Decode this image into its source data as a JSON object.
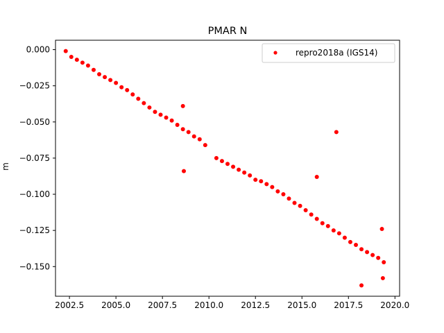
{
  "chart_data": {
    "type": "scatter",
    "title": "PMAR N",
    "xlabel": "",
    "ylabel": "m",
    "xlim": [
      2001.75,
      2020.25
    ],
    "ylim": [
      -0.1705,
      0.0065
    ],
    "xticks": [
      2002.5,
      2005.0,
      2007.5,
      2010.0,
      2012.5,
      2015.0,
      2017.5,
      2020.0
    ],
    "xtick_labels": [
      "2002.5",
      "2005.0",
      "2007.5",
      "2010.0",
      "2012.5",
      "2015.0",
      "2017.5",
      "2020.0"
    ],
    "yticks": [
      0.0,
      -0.025,
      -0.05,
      -0.075,
      -0.1,
      -0.125,
      -0.15
    ],
    "ytick_labels": [
      "0.000",
      "−0.025",
      "−0.050",
      "−0.075",
      "−0.100",
      "−0.125",
      "−0.150"
    ],
    "grid": false,
    "legend_position": "top-right",
    "series": [
      {
        "name": "repro2018a (IGS14)",
        "color": "#ff0000",
        "marker": "point",
        "x": [
          2002.3,
          2002.6,
          2002.9,
          2003.2,
          2003.5,
          2003.8,
          2004.1,
          2004.4,
          2004.7,
          2005.0,
          2005.3,
          2005.6,
          2005.9,
          2006.2,
          2006.5,
          2006.8,
          2007.1,
          2007.4,
          2007.7,
          2008.0,
          2008.3,
          2008.6,
          2008.9,
          2009.2,
          2009.5,
          2009.8,
          2010.4,
          2010.7,
          2011.0,
          2011.3,
          2011.6,
          2011.9,
          2012.2,
          2012.5,
          2012.8,
          2013.1,
          2013.4,
          2013.7,
          2014.0,
          2014.3,
          2014.6,
          2014.9,
          2015.2,
          2015.5,
          2015.8,
          2016.1,
          2016.4,
          2016.7,
          2017.0,
          2017.3,
          2017.6,
          2017.9,
          2018.2,
          2018.5,
          2018.8,
          2019.1,
          2019.4,
          2008.65,
          2015.8,
          2016.85,
          2018.2,
          2019.3,
          2019.35,
          2008.6
        ],
        "y": [
          -0.001,
          -0.005,
          -0.007,
          -0.009,
          -0.011,
          -0.014,
          -0.017,
          -0.019,
          -0.021,
          -0.023,
          -0.026,
          -0.028,
          -0.031,
          -0.034,
          -0.037,
          -0.04,
          -0.043,
          -0.045,
          -0.047,
          -0.049,
          -0.052,
          -0.055,
          -0.057,
          -0.06,
          -0.062,
          -0.066,
          -0.075,
          -0.077,
          -0.079,
          -0.081,
          -0.083,
          -0.085,
          -0.087,
          -0.09,
          -0.091,
          -0.093,
          -0.095,
          -0.098,
          -0.1,
          -0.103,
          -0.106,
          -0.108,
          -0.111,
          -0.114,
          -0.117,
          -0.12,
          -0.122,
          -0.125,
          -0.127,
          -0.13,
          -0.133,
          -0.135,
          -0.138,
          -0.14,
          -0.142,
          -0.144,
          -0.147,
          -0.084,
          -0.088,
          -0.057,
          -0.163,
          -0.124,
          -0.158,
          -0.039
        ]
      }
    ]
  }
}
